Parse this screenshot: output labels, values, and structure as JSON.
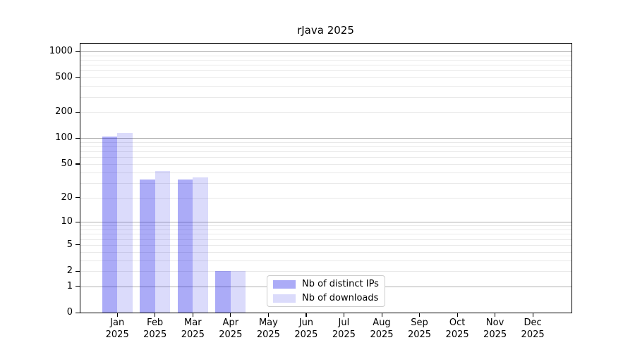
{
  "chart_data": {
    "type": "bar",
    "title": "rJava 2025",
    "months": [
      "Jan",
      "Feb",
      "Mar",
      "Apr",
      "May",
      "Jun",
      "Jul",
      "Aug",
      "Sep",
      "Oct",
      "Nov",
      "Dec"
    ],
    "year": "2025",
    "categories": [
      "Jan 2025",
      "Feb 2025",
      "Mar 2025",
      "Apr 2025",
      "May 2025",
      "Jun 2025",
      "Jul 2025",
      "Aug 2025",
      "Sep 2025",
      "Oct 2025",
      "Nov 2025",
      "Dec 2025"
    ],
    "series": [
      {
        "name": "Nb of distinct IPs",
        "color": "rgba(0,0,230,0.33)",
        "values": [
          105,
          33,
          33,
          2,
          0,
          0,
          0,
          0,
          0,
          0,
          0,
          0
        ]
      },
      {
        "name": "Nb of downloads",
        "color": "rgba(0,0,230,0.14)",
        "values": [
          115,
          41,
          35,
          2,
          0,
          0,
          0,
          0,
          0,
          0,
          0,
          0
        ]
      }
    ],
    "xlabel": "",
    "ylabel": "",
    "y_scale": "log1p",
    "y_ticks": [
      0,
      1,
      2,
      5,
      10,
      20,
      50,
      100,
      200,
      500,
      1000
    ],
    "ylim": [
      0,
      1250
    ],
    "grid": {
      "major_values": [
        1,
        10,
        100,
        1000
      ],
      "minor": "2-9 per decade",
      "major_color": "#b0b0b0",
      "minor_color": "#e9e9e9"
    },
    "legend_position": "lower center (inside plot)"
  }
}
